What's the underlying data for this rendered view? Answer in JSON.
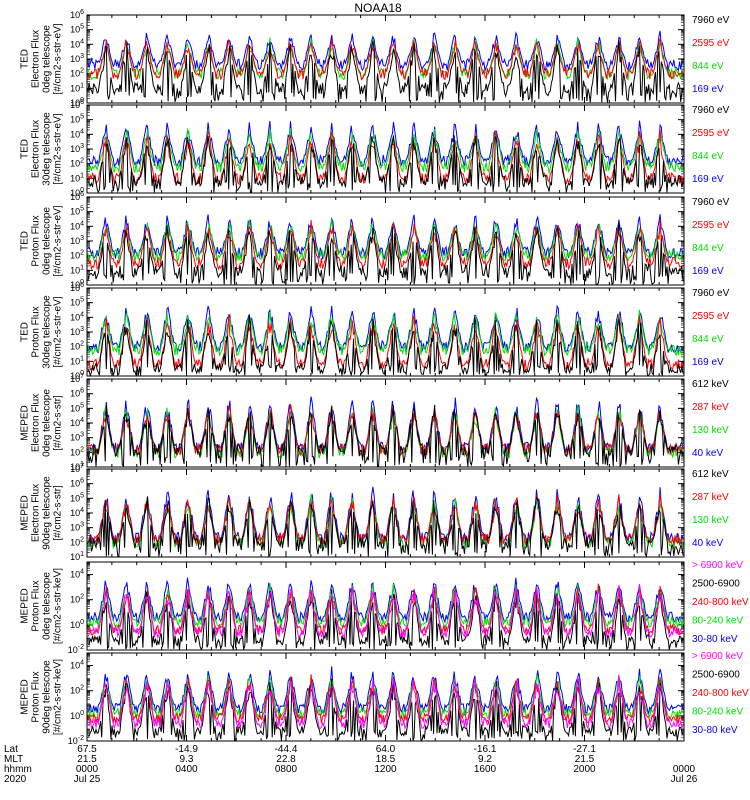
{
  "title": "NOAA18",
  "colors": {
    "black": "#000000",
    "red": "#ff0000",
    "green": "#00e000",
    "blue": "#0000ff",
    "magenta": "#ff00ff"
  },
  "chart_data": [
    {
      "type": "line",
      "panel": "ted-electron-0deg",
      "ylabel": [
        "TED",
        "Electron Flux",
        "0deg telescope",
        "[#/cm2-s-str-eV]"
      ],
      "yticks": [
        "10^0",
        "10^1",
        "10^2",
        "10^3",
        "10^4",
        "10^5",
        "10^6"
      ],
      "ylim_log": [
        0,
        6
      ],
      "series": [
        {
          "name": "7960 eV",
          "color": "black",
          "base": 1.0
        },
        {
          "name": "2595 eV",
          "color": "red",
          "base": 2.0
        },
        {
          "name": "844 eV",
          "color": "green",
          "base": 2.0
        },
        {
          "name": "169 eV",
          "color": "blue",
          "base": 2.6
        }
      ]
    },
    {
      "type": "line",
      "panel": "ted-electron-30deg",
      "ylabel": [
        "TED",
        "Electron Flux",
        "30deg telescope",
        "[#/cm2-s-str-eV]"
      ],
      "yticks": [
        "10^0",
        "10^1",
        "10^2",
        "10^3",
        "10^4",
        "10^5",
        "10^6"
      ],
      "ylim_log": [
        0,
        6
      ],
      "series": [
        {
          "name": "7960 eV",
          "color": "black",
          "base": 0.8
        },
        {
          "name": "2595 eV",
          "color": "red",
          "base": 1.0
        },
        {
          "name": "844 eV",
          "color": "green",
          "base": 1.8
        },
        {
          "name": "169 eV",
          "color": "blue",
          "base": 2.2
        }
      ]
    },
    {
      "type": "line",
      "panel": "ted-proton-0deg",
      "ylabel": [
        "TED",
        "Proton Flux",
        "0deg telescope",
        "[#/cm2-s-str-eV]"
      ],
      "yticks": [
        "10^0",
        "10^1",
        "10^2",
        "10^3",
        "10^4",
        "10^5",
        "10^6"
      ],
      "ylim_log": [
        0,
        6
      ],
      "series": [
        {
          "name": "7960 eV",
          "color": "black",
          "base": 1.0
        },
        {
          "name": "2595 eV",
          "color": "red",
          "base": 1.5
        },
        {
          "name": "844 eV",
          "color": "green",
          "base": 2.0
        },
        {
          "name": "169 eV",
          "color": "blue",
          "base": 2.2
        }
      ]
    },
    {
      "type": "line",
      "panel": "ted-proton-30deg",
      "ylabel": [
        "TED",
        "Proton Flux",
        "30deg telescope",
        "[#/cm2-s-str-eV]"
      ],
      "yticks": [
        "10^0",
        "10^1",
        "10^2",
        "10^3",
        "10^4",
        "10^5",
        "10^6"
      ],
      "ylim_log": [
        0,
        6
      ],
      "series": [
        {
          "name": "7960 eV",
          "color": "black",
          "base": 0.5
        },
        {
          "name": "2595 eV",
          "color": "red",
          "base": 0.8
        },
        {
          "name": "844 eV",
          "color": "green",
          "base": 1.8
        },
        {
          "name": "169 eV",
          "color": "blue",
          "base": 2.0
        }
      ]
    },
    {
      "type": "line",
      "panel": "meped-electron-0deg",
      "ylabel": [
        "MEPED",
        "Electron Flux",
        "0deg telescope",
        "[#/cm2-s-str]"
      ],
      "yticks": [
        "10^1",
        "10^2",
        "10^3",
        "10^4",
        "10^5",
        "10^6",
        "10^7"
      ],
      "ylim_log": [
        1,
        7
      ],
      "series": [
        {
          "name": "612 keV",
          "color": "black",
          "base": 2.2
        },
        {
          "name": "287 keV",
          "color": "red",
          "base": 2.2
        },
        {
          "name": "130 keV",
          "color": "green",
          "base": 2.0
        },
        {
          "name": "40 keV",
          "color": "blue",
          "base": 2.3
        }
      ]
    },
    {
      "type": "line",
      "panel": "meped-electron-90deg",
      "ylabel": [
        "MEPED",
        "Electron Flux",
        "90deg telescope",
        "[#/cm2-s-str]"
      ],
      "yticks": [
        "10^1",
        "10^2",
        "10^3",
        "10^4",
        "10^5",
        "10^6",
        "10^7"
      ],
      "ylim_log": [
        1,
        7
      ],
      "series": [
        {
          "name": "612 keV",
          "color": "black",
          "base": 2.0
        },
        {
          "name": "287 keV",
          "color": "red",
          "base": 2.2
        },
        {
          "name": "130 keV",
          "color": "green",
          "base": 2.0
        },
        {
          "name": "40 keV",
          "color": "blue",
          "base": 2.3
        }
      ]
    },
    {
      "type": "line",
      "panel": "meped-proton-0deg",
      "ylabel": [
        "MEPED",
        "Proton Flux",
        "0deg telescope",
        "[#/cm2-s-str-keV]"
      ],
      "yticks": [
        "10^-2",
        "10^0",
        "10^2",
        "10^4"
      ],
      "ylim_log": [
        -2,
        5
      ],
      "series": [
        {
          "name": "> 6900 keV",
          "color": "magenta",
          "base": -0.6
        },
        {
          "name": "2500-6900",
          "color": "black",
          "base": -1.2
        },
        {
          "name": "240-800 keV",
          "color": "red",
          "base": -0.4
        },
        {
          "name": "80-240 keV",
          "color": "green",
          "base": 0.2
        },
        {
          "name": "30-80 keV",
          "color": "blue",
          "base": 0.6
        }
      ]
    },
    {
      "type": "line",
      "panel": "meped-proton-90deg",
      "ylabel": [
        "MEPED",
        "Proton Flux",
        "90deg telescope",
        "[#/cm2-s-str-keV]"
      ],
      "yticks": [
        "10^-2",
        "10^0",
        "10^2",
        "10^4"
      ],
      "ylim_log": [
        -2,
        5
      ],
      "series": [
        {
          "name": "> 6900 keV",
          "color": "magenta",
          "base": -0.6
        },
        {
          "name": "2500-6900",
          "color": "black",
          "base": -1.2
        },
        {
          "name": "240-800 keV",
          "color": "red",
          "base": -0.2
        },
        {
          "name": "80-240 keV",
          "color": "green",
          "base": 0.2
        },
        {
          "name": "30-80 keV",
          "color": "blue",
          "base": 0.6
        }
      ]
    }
  ],
  "x_axis": {
    "row_labels": [
      "Lat",
      "MLT",
      "hhmm",
      "2020"
    ],
    "ticks": [
      {
        "lat": "67.5",
        "mlt": "21.5",
        "hhmm": "0000",
        "date": "Jul 25"
      },
      {
        "lat": "-14.9",
        "mlt": "9.3",
        "hhmm": "0400",
        "date": ""
      },
      {
        "lat": "-44.4",
        "mlt": "22.8",
        "hhmm": "0800",
        "date": ""
      },
      {
        "lat": "64.0",
        "mlt": "18.5",
        "hhmm": "1200",
        "date": ""
      },
      {
        "lat": "-16.1",
        "mlt": "9.2",
        "hhmm": "1600",
        "date": ""
      },
      {
        "lat": "-27.1",
        "mlt": "21.5",
        "hhmm": "2000",
        "date": ""
      },
      {
        "lat": "",
        "mlt": "",
        "hhmm": "0000",
        "date": "Jul 26"
      }
    ]
  }
}
